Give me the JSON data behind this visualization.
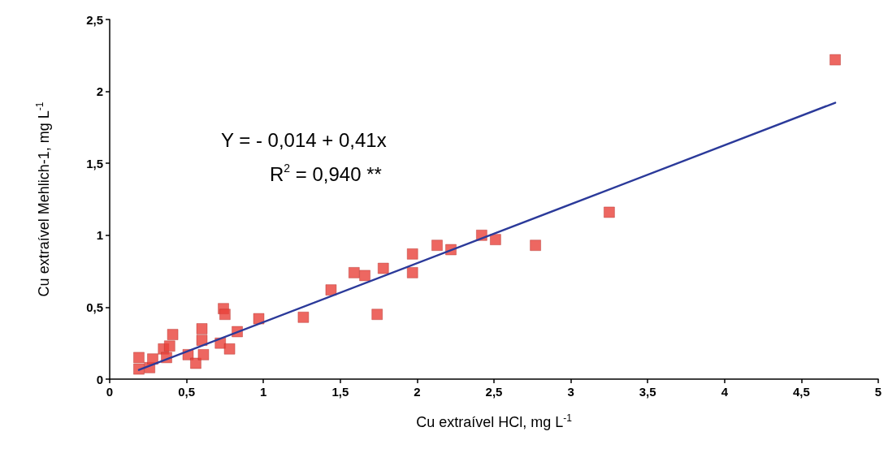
{
  "chart_data": {
    "type": "scatter",
    "xlabel": "Cu extraível HCl, mg L$^{-1}$",
    "ylabel": "Cu extraível Mehlich-1, mg L$^{-1}$",
    "annotations": [
      "Y = - 0,014 + 0,41x",
      "R$^{2}$ = 0,940 **"
    ],
    "xlim": [
      0,
      5
    ],
    "xticks": [
      0,
      {
        "value": 0.5,
        "label": "0,5"
      },
      1,
      {
        "value": 1.5,
        "label": "1,5"
      },
      2,
      {
        "value": 2.5,
        "label": "2,5"
      },
      3,
      {
        "value": 3.5,
        "label": "3,5"
      },
      4,
      {
        "value": 4.5,
        "label": "4,5"
      },
      5
    ],
    "ylim": [
      0,
      2.5
    ],
    "yticks": [
      0,
      {
        "value": 0.5,
        "label": "0,5"
      },
      1,
      {
        "value": 1.5,
        "label": "1,5"
      },
      2,
      {
        "value": 2.5,
        "label": "2,5"
      }
    ],
    "grid": false,
    "series": [
      {
        "type": "scatter",
        "marker": "square",
        "color": "#e8413a",
        "x": [
          0.19,
          0.19,
          0.26,
          0.28,
          0.35,
          0.39,
          0.41,
          0.37,
          0.51,
          0.56,
          0.6,
          0.6,
          0.61,
          0.74,
          0.75,
          0.72,
          0.78,
          0.83,
          0.97,
          1.26,
          1.44,
          1.59,
          1.66,
          1.78,
          1.74,
          1.97,
          1.97,
          2.13,
          2.22,
          2.42,
          2.51,
          2.77,
          3.25,
          4.72
        ],
        "values": [
          0.15,
          0.07,
          0.08,
          0.14,
          0.21,
          0.23,
          0.31,
          0.15,
          0.17,
          0.11,
          0.35,
          0.27,
          0.17,
          0.49,
          0.45,
          0.25,
          0.21,
          0.33,
          0.42,
          0.43,
          0.62,
          0.74,
          0.72,
          0.77,
          0.45,
          0.87,
          0.74,
          0.93,
          0.9,
          1.0,
          0.97,
          0.93,
          1.16,
          2.22
        ]
      },
      {
        "type": "line",
        "marker": "none",
        "line_style": "solid",
        "color": "#2b3a9a",
        "x": [
          0.19,
          4.72
        ],
        "values": [
          0.064,
          1.921
        ]
      }
    ]
  }
}
